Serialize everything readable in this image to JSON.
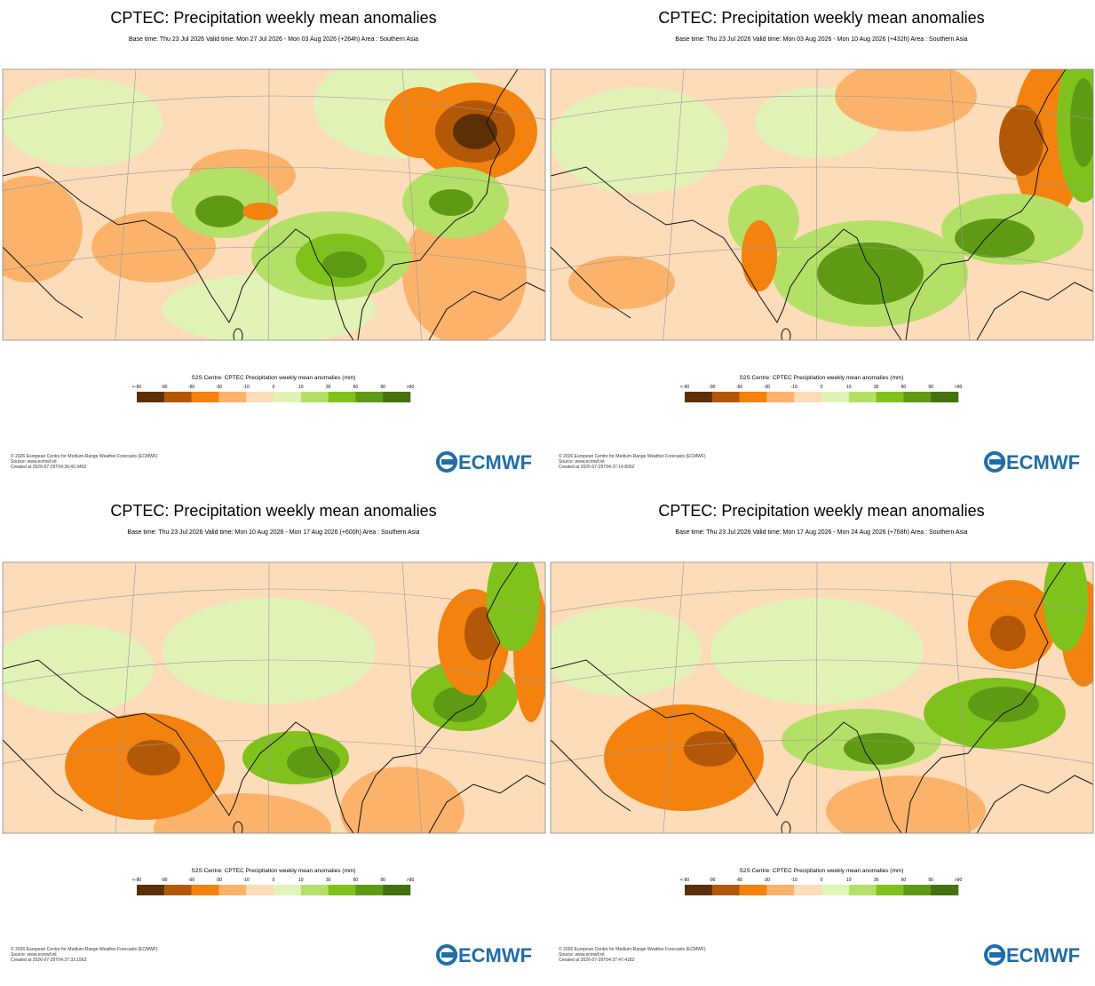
{
  "colorbar": {
    "title": "S2S Centre: CPTEC Precipitation weekly mean anomalies (mm)",
    "labels": [
      "<-90",
      "-90",
      "-60",
      "-30",
      "-10",
      "0",
      "10",
      "30",
      "60",
      "90",
      ">90"
    ],
    "colors": [
      "#5c3006",
      "#b35806",
      "#f3820f",
      "#fbb36c",
      "#fddcb9",
      "#e2f3b8",
      "#b4e068",
      "#80c21c",
      "#5f9a14",
      "#45720f"
    ]
  },
  "logo": "ECMWF",
  "panels": [
    {
      "title": "CPTEC: Precipitation weekly mean anomalies",
      "subtitle": "Base time: Thu 23 Jul 2026 Valid time: Mon 27 Jul 2026 - Mon 03 Aug 2026 (+264h) Area : Southern Asia",
      "footer": [
        "© 2026 European Centre for Medium-Range Weather Forecasts (ECMWF)",
        "Source: www.ecmwf.int",
        "Created at 2026-07-29T04:36:43.940Z"
      ]
    },
    {
      "title": "CPTEC: Precipitation weekly mean anomalies",
      "subtitle": "Base time: Thu 23 Jul 2026 Valid time: Mon 03 Aug 2026 - Mon 10 Aug 2026 (+432h) Area : Southern Asia",
      "footer": [
        "© 2026 European Centre for Medium-Range Weather Forecasts (ECMWF)",
        "Source: www.ecmwf.int",
        "Created at 2026-07-29T04:37:14.826Z"
      ]
    },
    {
      "title": "CPTEC: Precipitation weekly mean anomalies",
      "subtitle": "Base time: Thu 23 Jul 2026 Valid time: Mon 10 Aug 2026 - Mon 17 Aug 2026 (+600h) Area : Southern Asia",
      "footer": [
        "© 2026 European Centre for Medium-Range Weather Forecasts (ECMWF)",
        "Source: www.ecmwf.int",
        "Created at 2026-07-29T04:37:33.156Z"
      ]
    },
    {
      "title": "CPTEC: Precipitation weekly mean anomalies",
      "subtitle": "Base time: Thu 23 Jul 2026 Valid time: Mon 17 Aug 2026 - Mon 24 Aug 2026 (+768h) Area : Southern Asia",
      "footer": [
        "© 2026 European Centre for Medium-Range Weather Forecasts (ECMWF)",
        "Source: www.ecmwf.int",
        "Created at 2026-07-29T04:37:47.418Z"
      ]
    }
  ]
}
